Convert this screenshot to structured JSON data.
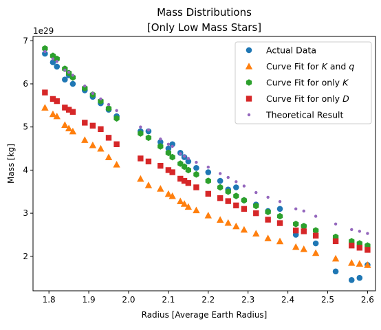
{
  "chart_data": {
    "type": "scatter",
    "title": "Mass Distributions",
    "subtitle": "[Only Low Mass Stars]",
    "xlabel": "Radius [Average Earth Radius]",
    "ylabel": "Mass [kg]",
    "y_offset_label": "1e29",
    "xlim": [
      1.76,
      2.62
    ],
    "ylim": [
      1.2,
      7.1
    ],
    "x_ticks": [
      1.8,
      1.9,
      2.0,
      2.1,
      2.2,
      2.3,
      2.4,
      2.5,
      2.6
    ],
    "x_tick_labels": [
      "1.8",
      "1.9",
      "2.0",
      "2.1",
      "2.2",
      "2.3",
      "2.4",
      "2.5",
      "2.6"
    ],
    "y_ticks": [
      2,
      3,
      4,
      5,
      6,
      7
    ],
    "y_tick_labels": [
      "2",
      "3",
      "4",
      "5",
      "6",
      "7"
    ],
    "grid": false,
    "legend_placement": "top-right",
    "x": [
      1.79,
      1.81,
      1.82,
      1.84,
      1.85,
      1.86,
      1.89,
      1.91,
      1.93,
      1.95,
      1.97,
      2.03,
      2.05,
      2.08,
      2.1,
      2.11,
      2.13,
      2.14,
      2.15,
      2.17,
      2.2,
      2.23,
      2.25,
      2.27,
      2.29,
      2.32,
      2.35,
      2.38,
      2.42,
      2.44,
      2.47,
      2.52,
      2.56,
      2.58,
      2.6
    ],
    "series": [
      {
        "name": "Actual Data",
        "marker": "circle",
        "color": "#1f77b4",
        "y": [
          6.7,
          6.5,
          6.4,
          6.1,
          6.2,
          6.0,
          5.85,
          5.7,
          5.55,
          5.4,
          5.25,
          4.9,
          4.9,
          4.65,
          4.5,
          4.6,
          4.4,
          4.3,
          4.2,
          4.05,
          3.95,
          3.75,
          3.55,
          3.6,
          3.3,
          3.2,
          3.05,
          3.1,
          2.5,
          2.7,
          2.3,
          1.65,
          1.45,
          1.5,
          1.8
        ]
      },
      {
        "name": "Curve Fit for K and q",
        "marker": "triangle",
        "color": "#ff7f0e",
        "y": [
          5.45,
          5.3,
          5.25,
          5.05,
          4.97,
          4.9,
          4.7,
          4.58,
          4.5,
          4.3,
          4.13,
          3.8,
          3.65,
          3.57,
          3.45,
          3.4,
          3.28,
          3.22,
          3.15,
          3.07,
          2.95,
          2.85,
          2.78,
          2.7,
          2.62,
          2.53,
          2.42,
          2.35,
          2.22,
          2.17,
          2.08,
          1.95,
          1.85,
          1.83,
          1.8
        ]
      },
      {
        "name": "Curve Fit for only K",
        "marker": "hexagon",
        "color": "#2ca02c",
        "y": [
          6.82,
          6.65,
          6.58,
          6.35,
          6.25,
          6.15,
          5.9,
          5.75,
          5.6,
          5.43,
          5.2,
          4.85,
          4.75,
          4.55,
          4.4,
          4.3,
          4.15,
          4.08,
          4.0,
          3.9,
          3.75,
          3.6,
          3.5,
          3.4,
          3.3,
          3.17,
          3.03,
          2.93,
          2.75,
          2.7,
          2.6,
          2.45,
          2.35,
          2.3,
          2.25
        ]
      },
      {
        "name": "Curve Fit for only D",
        "marker": "square",
        "color": "#d62728",
        "y": [
          5.8,
          5.65,
          5.6,
          5.45,
          5.4,
          5.35,
          5.1,
          5.03,
          4.95,
          4.75,
          4.6,
          4.27,
          4.2,
          4.1,
          4.0,
          3.95,
          3.8,
          3.75,
          3.7,
          3.6,
          3.45,
          3.35,
          3.28,
          3.18,
          3.1,
          3.0,
          2.85,
          2.77,
          2.6,
          2.58,
          2.48,
          2.35,
          2.25,
          2.2,
          2.15
        ]
      },
      {
        "name": "Theoretical Result",
        "marker": "dot",
        "color": "#9467bd",
        "y": [
          6.75,
          6.58,
          6.52,
          6.32,
          6.27,
          6.2,
          5.95,
          5.78,
          5.65,
          5.52,
          5.38,
          5.0,
          4.93,
          4.72,
          4.6,
          4.55,
          4.38,
          4.32,
          4.27,
          4.18,
          4.07,
          3.92,
          3.83,
          3.73,
          3.63,
          3.48,
          3.37,
          3.27,
          3.1,
          3.05,
          2.93,
          2.75,
          2.62,
          2.58,
          2.53
        ]
      }
    ]
  }
}
